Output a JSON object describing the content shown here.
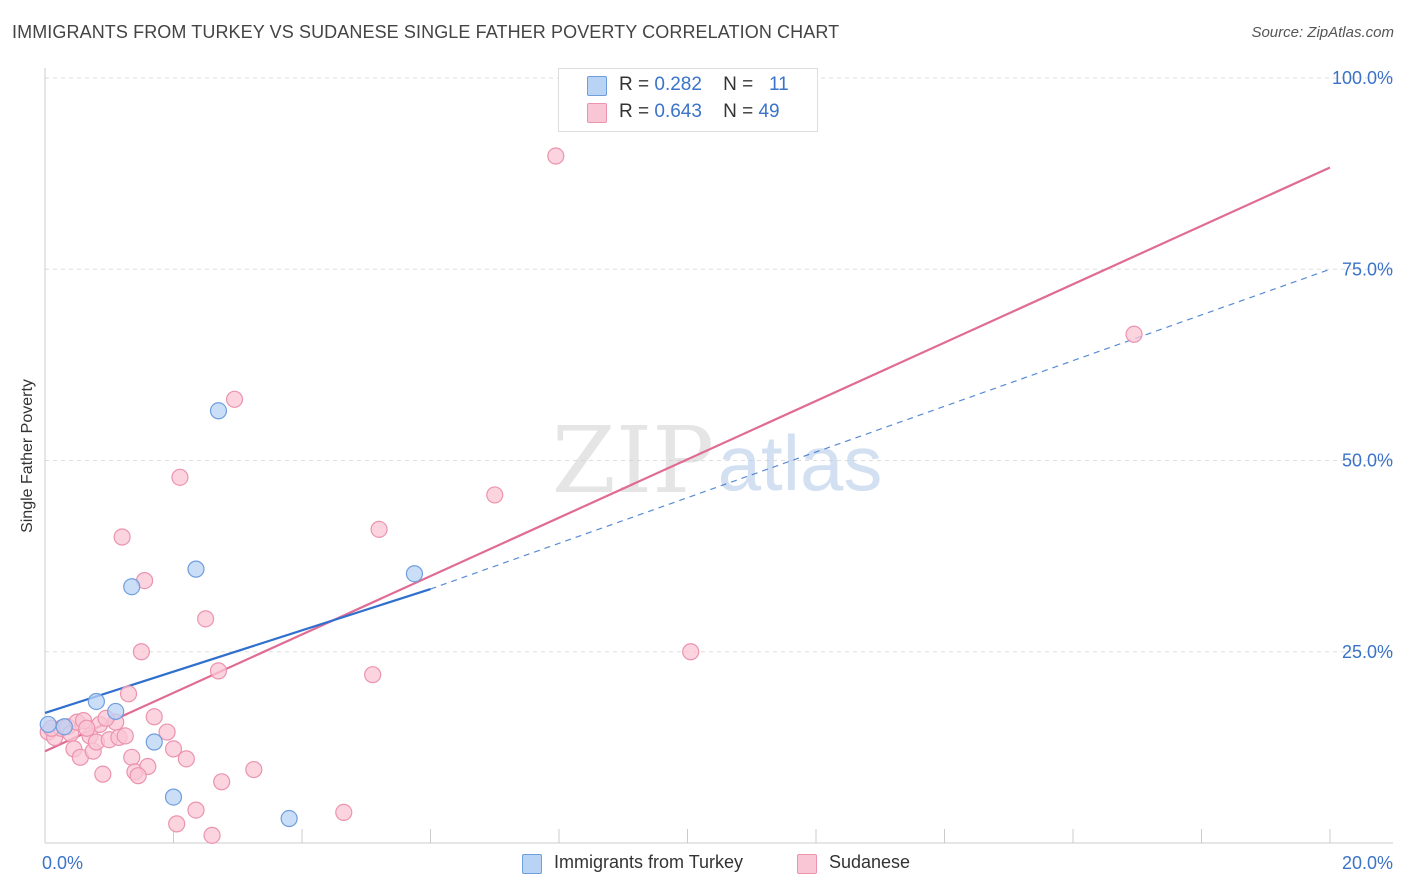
{
  "title": "IMMIGRANTS FROM TURKEY VS SUDANESE SINGLE FATHER POVERTY CORRELATION CHART",
  "source": "Source: ZipAtlas.com",
  "watermark": {
    "zip": "ZIP",
    "atlas": "atlas"
  },
  "legend_top": {
    "series": [
      {
        "r_label": "R =",
        "r_value": "0.282",
        "n_label": "N =",
        "n_value": "11"
      },
      {
        "r_label": "R =",
        "r_value": "0.643",
        "n_label": "N =",
        "n_value": "49"
      }
    ]
  },
  "colors": {
    "turkey_fill": "#b9d3f5",
    "turkey_stroke": "#6f9ede",
    "turkey_line": "#2f6fcd",
    "sudanese_fill": "#f9c6d5",
    "sudanese_stroke": "#ec93ae",
    "sudanese_line": "#e06b93",
    "tick_label": "#3b73c8",
    "grid": "#dddddd"
  },
  "chart_data": {
    "type": "scatter",
    "title": "IMMIGRANTS FROM TURKEY VS SUDANESE SINGLE FATHER POVERTY CORRELATION CHART",
    "xlabel": "",
    "ylabel": "Single Father Poverty",
    "xlim": [
      0,
      20
    ],
    "ylim": [
      0,
      100
    ],
    "x_tick_labels": [
      "0.0%",
      "20.0%"
    ],
    "y_ticks": [
      25,
      50,
      75,
      100
    ],
    "y_tick_labels": [
      "25.0%",
      "50.0%",
      "75.0%",
      "100.0%"
    ],
    "grid": true,
    "legend_position": "bottom",
    "series": [
      {
        "name": "Immigrants from Turkey",
        "x": [
          0.05,
          0.3,
          0.8,
          1.1,
          1.35,
          1.7,
          2.0,
          2.35,
          2.7,
          3.8,
          5.75
        ],
        "y": [
          15.5,
          15.2,
          18.5,
          17.2,
          33.5,
          13.2,
          6.0,
          35.8,
          56.5,
          3.2,
          35.2
        ],
        "trend": {
          "x": [
            0,
            6.0
          ],
          "y": [
            17.0,
            33.2
          ]
        },
        "trend_extension": {
          "x": [
            6.0,
            20.0
          ],
          "y": [
            33.2,
            75.0
          ]
        }
      },
      {
        "name": "Sudanese",
        "x": [
          0.05,
          0.15,
          0.25,
          0.35,
          0.4,
          0.45,
          0.5,
          0.55,
          0.6,
          0.7,
          0.75,
          0.8,
          0.85,
          0.9,
          1.0,
          1.1,
          1.15,
          1.2,
          1.25,
          1.3,
          1.35,
          1.4,
          1.5,
          1.55,
          1.6,
          1.7,
          1.9,
          2.0,
          2.05,
          2.1,
          2.2,
          2.35,
          2.5,
          2.6,
          2.7,
          2.75,
          2.95,
          3.25,
          4.65,
          5.1,
          5.2,
          7.0,
          7.95,
          10.05,
          16.95,
          0.1,
          0.65,
          1.45,
          0.95
        ],
        "y": [
          14.5,
          13.8,
          15.0,
          15.2,
          14.3,
          12.3,
          15.8,
          11.2,
          16.0,
          14.0,
          12.0,
          13.2,
          15.5,
          9.0,
          13.5,
          15.8,
          13.8,
          40.0,
          14.0,
          19.5,
          11.2,
          9.3,
          25.0,
          34.3,
          10.0,
          16.5,
          14.5,
          12.3,
          2.5,
          47.8,
          11.0,
          4.3,
          29.3,
          1.0,
          22.5,
          8.0,
          58.0,
          9.6,
          4.0,
          22.0,
          41.0,
          45.5,
          89.8,
          25.0,
          66.5,
          15.0,
          15.0,
          8.8,
          16.3
        ],
        "trend": {
          "x": [
            0,
            20.0
          ],
          "y": [
            12.0,
            88.3
          ]
        }
      }
    ]
  }
}
